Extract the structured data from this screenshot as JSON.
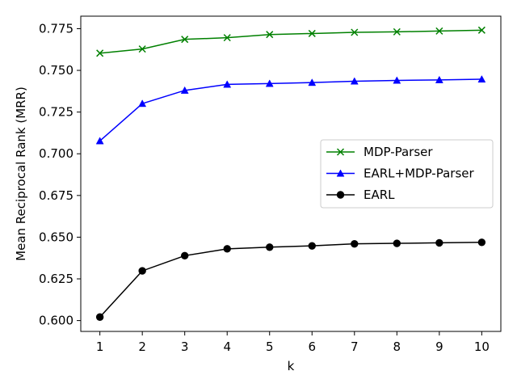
{
  "chart_data": {
    "type": "line",
    "xlabel": "k",
    "ylabel": "Mean Reciprocal Rank (MRR)",
    "x": [
      1,
      2,
      3,
      4,
      5,
      6,
      7,
      8,
      9,
      10
    ],
    "xticks": [
      "1",
      "2",
      "3",
      "4",
      "5",
      "6",
      "7",
      "8",
      "9",
      "10"
    ],
    "yticks": [
      "0.600",
      "0.625",
      "0.650",
      "0.675",
      "0.700",
      "0.725",
      "0.750",
      "0.775"
    ],
    "xlim": [
      0.55,
      10.45
    ],
    "ylim": [
      0.5935,
      0.7825
    ],
    "grid": false,
    "legend_position": "center-right",
    "series": [
      {
        "name": "MDP-Parser",
        "color": "#008000",
        "marker": "x",
        "values": [
          0.7603,
          0.7628,
          0.7686,
          0.7696,
          0.7715,
          0.7721,
          0.7728,
          0.7731,
          0.7736,
          0.7741
        ]
      },
      {
        "name": "EARL+MDP-Parser",
        "color": "#0000ff",
        "marker": "triangle",
        "values": [
          0.7077,
          0.7301,
          0.738,
          0.7416,
          0.7421,
          0.7427,
          0.7435,
          0.744,
          0.7443,
          0.7447
        ]
      },
      {
        "name": "EARL",
        "color": "#000000",
        "marker": "circle",
        "values": [
          0.6021,
          0.6298,
          0.6389,
          0.643,
          0.644,
          0.6448,
          0.646,
          0.6463,
          0.6466,
          0.6469
        ]
      }
    ]
  }
}
